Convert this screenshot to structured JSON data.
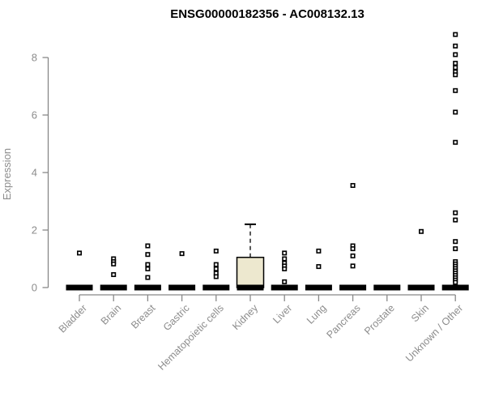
{
  "title": "ENSG00000182356 - AC008132.13",
  "chart_data": {
    "type": "box",
    "title": "ENSG00000182356 - AC008132.13",
    "xlabel": "",
    "ylabel": "Expression",
    "ylim": [
      0,
      8.9
    ],
    "yticks": [
      0,
      2,
      4,
      6,
      8
    ],
    "grid": false,
    "legend": "none",
    "categories": [
      "Bladder",
      "Brain",
      "Breast",
      "Gastric",
      "Hematopoietic cells",
      "Kidney",
      "Liver",
      "Lung",
      "Pancreas",
      "Prostate",
      "Skin",
      "Unknown / Other"
    ],
    "boxes": [
      {
        "category": "Bladder",
        "whisker_low": 0,
        "q1": 0,
        "median": 0,
        "q3": 0,
        "whisker_high": 0,
        "outliers": [
          1.2
        ]
      },
      {
        "category": "Brain",
        "whisker_low": 0,
        "q1": 0,
        "median": 0,
        "q3": 0,
        "whisker_high": 0,
        "outliers": [
          1.0,
          0.9,
          0.82,
          0.45
        ]
      },
      {
        "category": "Breast",
        "whisker_low": 0,
        "q1": 0,
        "median": 0,
        "q3": 0,
        "whisker_high": 0,
        "outliers": [
          1.45,
          1.15,
          0.8,
          0.65,
          0.35
        ]
      },
      {
        "category": "Gastric",
        "whisker_low": 0,
        "q1": 0,
        "median": 0,
        "q3": 0,
        "whisker_high": 0,
        "outliers": [
          1.18
        ]
      },
      {
        "category": "Hematopoietic cells",
        "whisker_low": 0,
        "q1": 0,
        "median": 0,
        "q3": 0,
        "whisker_high": 0,
        "outliers": [
          1.27,
          0.8,
          0.65,
          0.5,
          0.38
        ]
      },
      {
        "category": "Kidney",
        "whisker_low": 0,
        "q1": 0,
        "median": 0,
        "q3": 1.05,
        "whisker_high": 2.2,
        "outliers": []
      },
      {
        "category": "Liver",
        "whisker_low": 0,
        "q1": 0,
        "median": 0,
        "q3": 0,
        "whisker_high": 0,
        "outliers": [
          1.2,
          1.0,
          0.85,
          0.75,
          0.65,
          0.2
        ]
      },
      {
        "category": "Lung",
        "whisker_low": 0,
        "q1": 0,
        "median": 0,
        "q3": 0,
        "whisker_high": 0,
        "outliers": [
          1.27,
          0.73
        ]
      },
      {
        "category": "Pancreas",
        "whisker_low": 0,
        "q1": 0,
        "median": 0,
        "q3": 0,
        "whisker_high": 0,
        "outliers": [
          3.55,
          1.45,
          1.35,
          1.1,
          0.75
        ]
      },
      {
        "category": "Prostate",
        "whisker_low": 0,
        "q1": 0,
        "median": 0,
        "q3": 0,
        "whisker_high": 0,
        "outliers": []
      },
      {
        "category": "Skin",
        "whisker_low": 0,
        "q1": 0,
        "median": 0,
        "q3": 0,
        "whisker_high": 0,
        "outliers": [
          1.95
        ]
      },
      {
        "category": "Unknown / Other",
        "whisker_low": 0,
        "q1": 0,
        "median": 0,
        "q3": 0,
        "whisker_high": 0,
        "outliers": [
          8.8,
          8.4,
          8.1,
          7.8,
          7.65,
          7.5,
          7.4,
          6.85,
          6.1,
          5.05,
          2.6,
          2.35,
          1.6,
          1.35,
          0.9,
          0.82,
          0.74,
          0.66,
          0.58,
          0.5,
          0.42,
          0.34,
          0.26,
          0.18
        ]
      }
    ],
    "colors": {
      "title": "#000000",
      "axis": "#888888",
      "tick_label": "#8c8c8c",
      "box_fill": "#ede8cf",
      "box_border": "#000000",
      "median_bar": "#000000",
      "outlier_stroke": "#000000",
      "outlier_fill": "#ffffff",
      "background": "#ffffff"
    }
  }
}
